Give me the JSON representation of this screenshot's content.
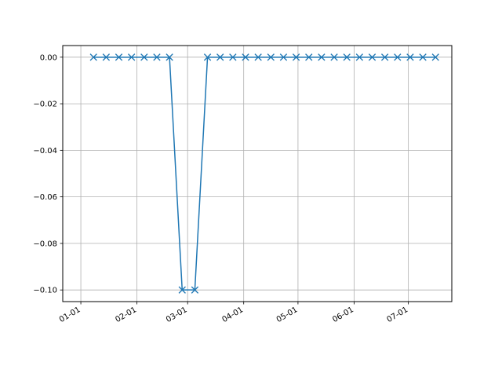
{
  "chart_data": {
    "type": "line",
    "marker": "x",
    "color": "#1f77b4",
    "grid": true,
    "xlim": [
      "2016-12-22",
      "2017-07-25"
    ],
    "ylim": [
      -0.105,
      0.005
    ],
    "xticks": [
      {
        "date": "2017-01-01",
        "label": "01-01"
      },
      {
        "date": "2017-02-01",
        "label": "02-01"
      },
      {
        "date": "2017-03-01",
        "label": "03-01"
      },
      {
        "date": "2017-04-01",
        "label": "04-01"
      },
      {
        "date": "2017-05-01",
        "label": "05-01"
      },
      {
        "date": "2017-06-01",
        "label": "06-01"
      },
      {
        "date": "2017-07-01",
        "label": "07-01"
      }
    ],
    "yticks": [
      {
        "value": 0.0,
        "label": "0.00"
      },
      {
        "value": -0.02,
        "label": "−0.02"
      },
      {
        "value": -0.04,
        "label": "−0.04"
      },
      {
        "value": -0.06,
        "label": "−0.06"
      },
      {
        "value": -0.08,
        "label": "−0.08"
      },
      {
        "value": -0.1,
        "label": "−0.10"
      }
    ],
    "x": [
      "2017-01-08",
      "2017-01-15",
      "2017-01-22",
      "2017-01-29",
      "2017-02-05",
      "2017-02-12",
      "2017-02-19",
      "2017-02-26",
      "2017-03-05",
      "2017-03-12",
      "2017-03-19",
      "2017-03-26",
      "2017-04-02",
      "2017-04-09",
      "2017-04-16",
      "2017-04-23",
      "2017-04-30",
      "2017-05-07",
      "2017-05-14",
      "2017-05-21",
      "2017-05-28",
      "2017-06-04",
      "2017-06-11",
      "2017-06-18",
      "2017-06-25",
      "2017-07-02",
      "2017-07-09",
      "2017-07-16"
    ],
    "y": [
      0.0,
      0.0,
      0.0,
      0.0,
      0.0,
      0.0,
      0.0,
      -0.1,
      -0.1,
      0.0,
      0.0,
      0.0,
      0.0,
      0.0,
      0.0,
      0.0,
      0.0,
      0.0,
      0.0,
      0.0,
      0.0,
      0.0,
      0.0,
      0.0,
      0.0,
      0.0,
      0.0,
      0.0
    ]
  }
}
